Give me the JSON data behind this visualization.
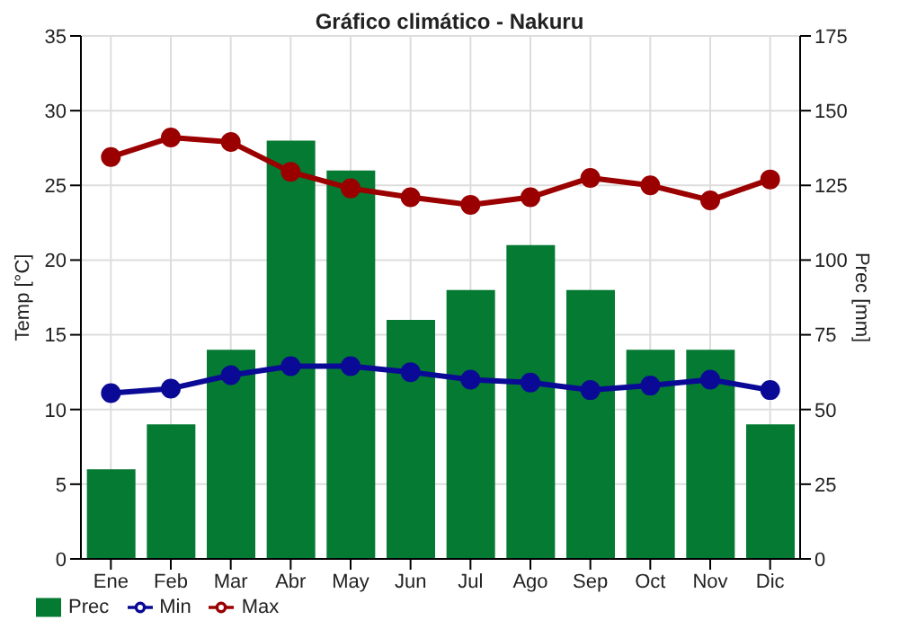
{
  "chart_data": {
    "type": "line",
    "title": "Gráfico climático - Nakuru",
    "ylabel": "Temp [°C]",
    "y2label": "Prec [mm]",
    "categories": [
      "Ene",
      "Feb",
      "Mar",
      "Abr",
      "May",
      "Jun",
      "Jul",
      "Ago",
      "Sep",
      "Oct",
      "Nov",
      "Dic"
    ],
    "series": [
      {
        "name": "Prec",
        "type": "bar",
        "axis": "y2",
        "color": "#047a32",
        "values": [
          30,
          45,
          70,
          140,
          130,
          80,
          90,
          105,
          90,
          70,
          70,
          45
        ]
      },
      {
        "name": "Min",
        "color": "#0a0a96",
        "values": [
          11.1,
          11.4,
          12.3,
          12.9,
          12.9,
          12.5,
          12.0,
          11.8,
          11.3,
          11.6,
          12.0,
          11.3
        ]
      },
      {
        "name": "Max",
        "color": "#9b0000",
        "values": [
          26.9,
          28.2,
          27.9,
          25.9,
          24.8,
          24.2,
          23.7,
          24.2,
          25.5,
          25.0,
          24.0,
          25.4
        ]
      }
    ],
    "ylim": [
      0,
      35
    ],
    "yticks": [
      0,
      5,
      10,
      15,
      20,
      25,
      30,
      35
    ],
    "y2lim": [
      0,
      175
    ],
    "y2ticks": [
      0,
      25,
      50,
      75,
      100,
      125,
      150,
      175
    ],
    "grid": true,
    "legend": "bottom",
    "marker": "circle",
    "line_style": "solid"
  }
}
